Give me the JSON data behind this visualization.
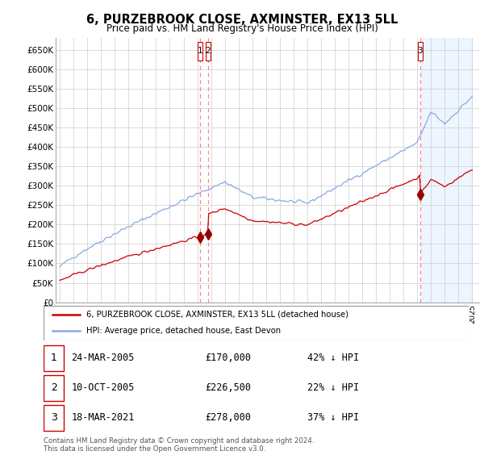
{
  "title": "6, PURZEBROOK CLOSE, AXMINSTER, EX13 5LL",
  "subtitle": "Price paid vs. HM Land Registry's House Price Index (HPI)",
  "property_label": "6, PURZEBROOK CLOSE, AXMINSTER, EX13 5LL (detached house)",
  "hpi_label": "HPI: Average price, detached house, East Devon",
  "footer": "Contains HM Land Registry data © Crown copyright and database right 2024.\nThis data is licensed under the Open Government Licence v3.0.",
  "transactions": [
    {
      "num": "1",
      "date": "24-MAR-2005",
      "price": "£170,000",
      "pct": "42% ↓ HPI",
      "year": 2005.22,
      "price_val": 170000
    },
    {
      "num": "2",
      "date": "10-OCT-2005",
      "price": "£226,500",
      "pct": "22% ↓ HPI",
      "year": 2005.78,
      "price_val": 226500
    },
    {
      "num": "3",
      "date": "18-MAR-2021",
      "price": "£278,000",
      "pct": "37% ↓ HPI",
      "year": 2021.21,
      "price_val": 278000
    }
  ],
  "ylim": [
    0,
    680000
  ],
  "yticks": [
    0,
    50000,
    100000,
    150000,
    200000,
    250000,
    300000,
    350000,
    400000,
    450000,
    500000,
    550000,
    600000,
    650000
  ],
  "xstart": 1995,
  "xend": 2025,
  "background_color": "#ffffff",
  "grid_color": "#cccccc",
  "property_color": "#cc0000",
  "hpi_color": "#88aadd",
  "vline_color": "#ff8888",
  "shade_color": "#ddeeff",
  "marker_color": "#990000"
}
